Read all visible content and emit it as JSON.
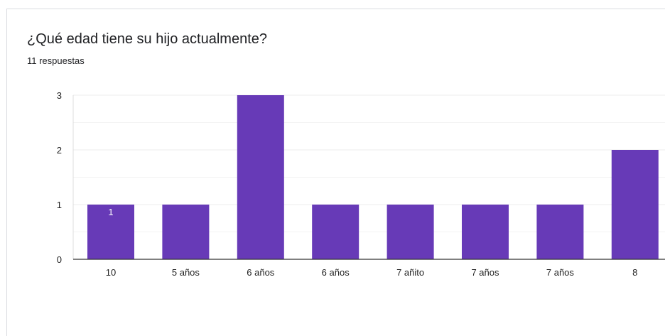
{
  "card": {
    "title": "¿Qué edad tiene su hijo actualmente?",
    "subtitle": "11 respuestas"
  },
  "colors": {
    "bar": "#673ab7",
    "grid": "#ececec",
    "axis": "#333333",
    "text": "#222222"
  },
  "chart_data": {
    "type": "bar",
    "title": "¿Qué edad tiene su hijo actualmente?",
    "categories": [
      "10",
      "5 años",
      "6 años",
      "6 años",
      "7 añito",
      "7 años",
      "7 años",
      "8"
    ],
    "values": [
      1,
      1,
      3,
      1,
      1,
      1,
      1,
      2
    ],
    "ylim": [
      0,
      3
    ],
    "yticks": [
      0,
      1,
      2,
      3
    ],
    "grid": true,
    "data_labels": [
      {
        "index": 0,
        "text": "1"
      }
    ]
  }
}
